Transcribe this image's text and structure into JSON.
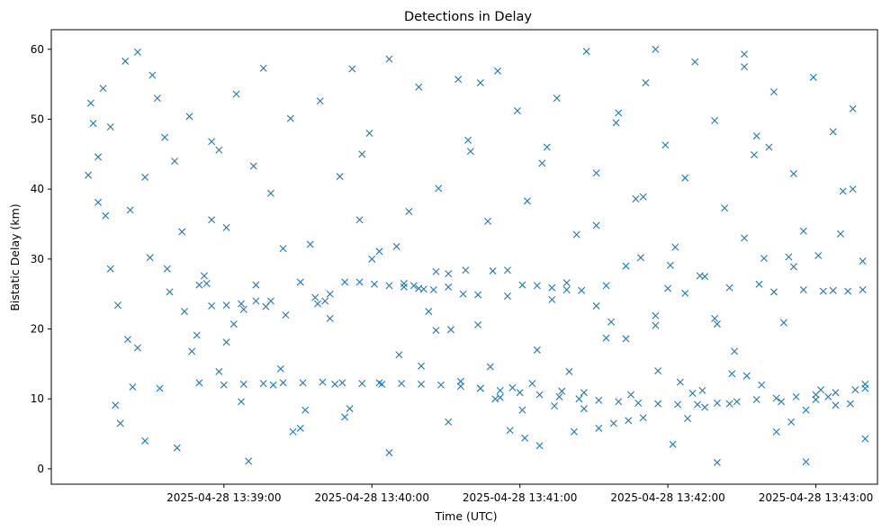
{
  "chart_data": {
    "type": "scatter",
    "title": "Detections in Delay",
    "xlabel": "Time (UTC)",
    "ylabel": "Bistatic Delay (km)",
    "xlim": [
      "2025-04-28 13:37:50",
      "2025-04-28 13:43:25"
    ],
    "ylim": [
      -2.2,
      62.8
    ],
    "xticks": [
      "2025-04-28 13:39:00",
      "2025-04-28 13:40:00",
      "2025-04-28 13:41:00",
      "2025-04-28 13:42:00",
      "2025-04-28 13:43:00"
    ],
    "yticks": [
      0,
      10,
      20,
      30,
      40,
      50,
      60
    ],
    "grid": false,
    "legend": "none",
    "marker": "x",
    "color": "#1f77b4",
    "series": [
      {
        "x": [
          "13:38:05",
          "13:38:07",
          "13:38:09",
          "13:38:12",
          "13:38:14",
          "13:38:16",
          "13:38:18",
          "13:38:21",
          "13:38:23",
          "13:38:25",
          "13:38:28",
          "13:38:30",
          "13:38:33",
          "13:38:36",
          "13:38:38",
          "13:38:41",
          "13:38:44",
          "13:38:47",
          "13:38:50",
          "13:38:53",
          "13:38:55",
          "13:38:58",
          "13:39:01",
          "13:39:04",
          "13:39:07",
          "13:39:10",
          "13:39:13",
          "13:39:17",
          "13:39:20",
          "13:39:24",
          "13:39:28",
          "13:39:33",
          "13:39:38",
          "13:39:41",
          "13:39:45",
          "13:39:49",
          "13:39:52",
          "13:39:56",
          "13:40:00",
          "13:40:03",
          "13:40:07",
          "13:40:10",
          "13:40:13",
          "13:40:17",
          "13:40:21",
          "13:40:26",
          "13:40:31",
          "13:40:36",
          "13:40:40",
          "13:40:44",
          "13:40:48",
          "13:40:52",
          "13:40:57",
          "13:41:01",
          "13:41:05",
          "13:41:09",
          "13:41:13",
          "13:41:17",
          "13:41:22",
          "13:41:26",
          "13:41:31",
          "13:41:35",
          "13:41:40",
          "13:41:45",
          "13:41:50",
          "13:41:55",
          "13:42:00",
          "13:42:05",
          "13:42:10",
          "13:42:15",
          "13:42:20",
          "13:42:25",
          "13:42:31",
          "13:42:36",
          "13:42:41",
          "13:42:46",
          "13:42:51",
          "13:42:56",
          "13:43:00",
          "13:43:05",
          "13:43:10",
          "13:43:15",
          "13:43:20"
        ],
        "y": [
          42.0,
          49.4,
          44.6,
          36.2,
          28.6,
          9.1,
          6.5,
          18.5,
          11.7,
          59.6,
          4.0,
          30.2,
          53.0,
          47.4,
          25.3,
          3.0,
          22.5,
          16.8,
          12.3,
          26.5,
          35.6,
          45.6,
          18.1,
          20.7,
          9.6,
          1.1,
          26.3,
          23.2,
          12.0,
          31.5,
          5.3,
          8.4,
          23.6,
          24.0,
          12.1,
          7.4,
          57.2,
          45.0,
          30.0,
          12.3,
          2.3,
          31.8,
          26.5,
          26.2,
          25.7,
          28.2,
          6.7,
          12.5,
          45.4,
          55.2,
          14.6,
          10.2,
          11.6,
          8.4,
          12.2,
          43.7,
          24.2,
          11.1,
          5.3,
          10.9,
          34.8,
          26.2,
          50.9,
          10.6,
          38.9,
          60.0,
          25.8,
          12.4,
          10.8,
          8.8,
          20.7,
          9.3,
          57.5,
          47.6,
          46.0,
          9.6,
          28.9,
          1.0,
          9.9,
          10.3,
          33.6,
          40.0,
          11.5
        ]
      },
      {
        "x": [
          "13:38:06",
          "13:38:09",
          "13:38:11",
          "13:38:14",
          "13:38:17",
          "13:38:20",
          "13:38:22",
          "13:38:25",
          "13:38:28",
          "13:38:31",
          "13:38:34",
          "13:38:37",
          "13:38:40",
          "13:38:43",
          "13:38:46",
          "13:38:49",
          "13:38:52",
          "13:38:55",
          "13:38:58",
          "13:39:01",
          "13:39:05",
          "13:39:08",
          "13:39:12",
          "13:39:16",
          "13:39:19",
          "13:39:23",
          "13:39:27",
          "13:39:31",
          "13:39:35",
          "13:39:39",
          "13:39:43",
          "13:39:47",
          "13:39:51",
          "13:39:55",
          "13:39:59",
          "13:40:03",
          "13:40:07",
          "13:40:11",
          "13:40:15",
          "13:40:19",
          "13:40:23",
          "13:40:27",
          "13:40:31",
          "13:40:35",
          "13:40:39",
          "13:40:43",
          "13:40:47",
          "13:40:51",
          "13:40:55",
          "13:40:59",
          "13:41:03",
          "13:41:07",
          "13:41:11",
          "13:41:15",
          "13:41:19",
          "13:41:23",
          "13:41:27",
          "13:41:31",
          "13:41:35",
          "13:41:39",
          "13:41:43",
          "13:41:47",
          "13:41:51",
          "13:41:55",
          "13:41:59",
          "13:42:03",
          "13:42:07",
          "13:42:11",
          "13:42:15",
          "13:42:19",
          "13:42:23",
          "13:42:27",
          "13:42:31",
          "13:42:35",
          "13:42:39",
          "13:42:43",
          "13:42:47",
          "13:42:51",
          "13:42:55",
          "13:42:59",
          "13:43:03",
          "13:43:07",
          "13:43:11",
          "13:43:15",
          "13:43:19"
        ],
        "y": [
          52.3,
          38.1,
          54.4,
          48.9,
          23.4,
          58.3,
          37.0,
          17.3,
          41.7,
          56.3,
          11.5,
          28.6,
          44.0,
          33.9,
          50.4,
          19.1,
          27.6,
          46.8,
          13.9,
          34.5,
          53.6,
          22.8,
          43.3,
          57.3,
          39.4,
          14.3,
          50.1,
          5.8,
          32.1,
          52.6,
          21.5,
          41.8,
          8.6,
          35.6,
          48.0,
          31.1,
          58.6,
          16.3,
          36.8,
          54.6,
          22.5,
          40.1,
          27.9,
          55.7,
          47.0,
          20.6,
          35.4,
          56.9,
          28.4,
          51.2,
          38.3,
          17.0,
          46.0,
          53.0,
          26.6,
          33.5,
          59.7,
          42.3,
          18.7,
          49.5,
          29.0,
          38.6,
          55.2,
          21.9,
          46.3,
          31.7,
          41.6,
          58.2,
          27.5,
          49.8,
          37.3,
          16.8,
          59.3,
          44.9,
          30.1,
          53.9,
          20.9,
          42.2,
          34.0,
          56.0,
          25.4,
          48.2,
          39.7,
          51.5,
          29.7
        ]
      },
      {
        "x": [
          "13:38:50",
          "13:38:55",
          "13:39:01",
          "13:39:07",
          "13:39:13",
          "13:39:19",
          "13:39:25",
          "13:39:31",
          "13:39:37",
          "13:39:43",
          "13:39:49",
          "13:39:55",
          "13:40:01",
          "13:40:07",
          "13:40:13",
          "13:40:19",
          "13:40:25",
          "13:40:31",
          "13:40:37",
          "13:40:43",
          "13:40:49",
          "13:40:55",
          "13:41:01",
          "13:41:07",
          "13:41:13",
          "13:41:19",
          "13:41:25",
          "13:41:31",
          "13:41:37",
          "13:41:43",
          "13:41:49",
          "13:41:55",
          "13:42:01",
          "13:42:07",
          "13:42:13",
          "13:42:19",
          "13:42:25",
          "13:42:31",
          "13:42:37",
          "13:42:43",
          "13:42:49",
          "13:42:55",
          "13:43:01",
          "13:43:07",
          "13:43:13",
          "13:43:19"
        ],
        "y": [
          26.3,
          23.3,
          23.4,
          23.6,
          24.0,
          24.0,
          22.0,
          26.7,
          24.5,
          25.0,
          26.7,
          26.7,
          26.4,
          26.2,
          26.0,
          25.8,
          25.6,
          26.0,
          25.0,
          24.9,
          28.3,
          24.7,
          26.3,
          26.2,
          25.9,
          25.6,
          25.5,
          23.3,
          21.0,
          18.6,
          30.2,
          20.5,
          29.1,
          25.1,
          27.6,
          21.5,
          25.9,
          33.0,
          26.4,
          25.3,
          30.3,
          25.6,
          30.5,
          25.5,
          25.4,
          25.6
        ]
      },
      {
        "x": [
          "13:39:00",
          "13:39:08",
          "13:39:16",
          "13:39:24",
          "13:39:32",
          "13:39:40",
          "13:39:48",
          "13:39:56",
          "13:40:04",
          "13:40:12",
          "13:40:20",
          "13:40:28",
          "13:40:36",
          "13:40:44",
          "13:40:52",
          "13:41:00",
          "13:41:08",
          "13:41:16",
          "13:41:24",
          "13:41:32",
          "13:41:40",
          "13:41:48",
          "13:41:56",
          "13:42:04",
          "13:42:12",
          "13:42:20",
          "13:42:28",
          "13:42:36",
          "13:42:44",
          "13:42:52",
          "13:43:00",
          "13:43:08",
          "13:43:16",
          "13:43:20"
        ],
        "y": [
          12.0,
          12.1,
          12.2,
          12.3,
          12.3,
          12.4,
          12.3,
          12.2,
          12.1,
          12.2,
          12.1,
          12.0,
          11.8,
          11.5,
          11.2,
          10.9,
          10.6,
          10.3,
          10.0,
          9.8,
          9.6,
          9.4,
          9.3,
          9.2,
          9.2,
          9.4,
          9.6,
          9.9,
          10.1,
          10.3,
          10.6,
          10.9,
          11.3,
          12.1
        ]
      },
      {
        "x": [
          "13:40:20",
          "13:40:26",
          "13:40:32",
          "13:40:38",
          "13:40:44",
          "13:40:50",
          "13:40:56",
          "13:41:02",
          "13:41:08",
          "13:41:14",
          "13:41:20",
          "13:41:26",
          "13:41:32",
          "13:41:38",
          "13:41:44",
          "13:41:50",
          "13:41:56",
          "13:42:02",
          "13:42:08",
          "13:42:14",
          "13:42:20",
          "13:42:26",
          "13:42:32",
          "13:42:38",
          "13:42:44",
          "13:42:50",
          "13:42:56",
          "13:43:02",
          "13:43:08",
          "13:43:14",
          "13:43:20"
        ],
        "y": [
          14.7,
          19.8,
          19.9,
          28.4,
          11.5,
          10.0,
          5.5,
          4.4,
          3.3,
          9.0,
          13.9,
          8.6,
          5.8,
          6.5,
          6.9,
          7.3,
          14.0,
          3.5,
          7.2,
          11.2,
          0.9,
          13.6,
          13.3,
          12.0,
          5.3,
          6.7,
          8.4,
          11.3,
          9.1,
          9.3,
          4.3
        ]
      }
    ]
  }
}
